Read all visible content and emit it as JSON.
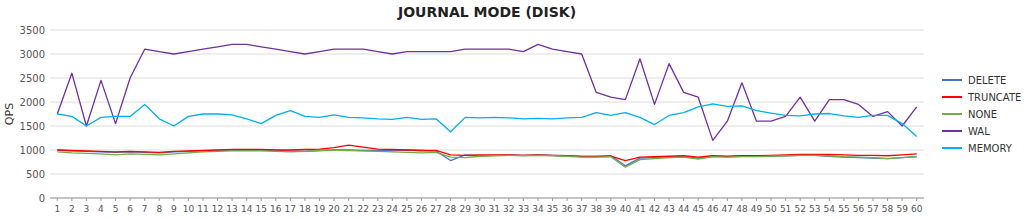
{
  "chart_data": {
    "type": "line",
    "title": "JOURNAL MODE (DISK)",
    "y_label": "QPS",
    "x": [
      1,
      2,
      3,
      4,
      5,
      6,
      7,
      8,
      9,
      10,
      11,
      12,
      13,
      14,
      15,
      16,
      17,
      18,
      19,
      20,
      21,
      22,
      23,
      24,
      25,
      26,
      27,
      28,
      29,
      30,
      31,
      32,
      33,
      34,
      35,
      36,
      37,
      38,
      39,
      40,
      41,
      42,
      43,
      44,
      45,
      46,
      47,
      48,
      49,
      50,
      51,
      52,
      53,
      54,
      55,
      56,
      57,
      58,
      59,
      60
    ],
    "xlim": [
      0.5,
      60.5
    ],
    "xticks": [
      1,
      2,
      3,
      4,
      5,
      6,
      7,
      8,
      9,
      10,
      11,
      12,
      13,
      14,
      15,
      16,
      17,
      18,
      19,
      20,
      21,
      22,
      23,
      24,
      25,
      26,
      27,
      28,
      29,
      30,
      31,
      32,
      33,
      34,
      35,
      36,
      37,
      38,
      39,
      40,
      41,
      42,
      43,
      44,
      45,
      46,
      47,
      48,
      49,
      50,
      51,
      52,
      53,
      54,
      55,
      56,
      57,
      58,
      59,
      60
    ],
    "ylim": [
      0,
      3500
    ],
    "yticks": [
      0,
      500,
      1000,
      1500,
      2000,
      2500,
      3000,
      3500
    ],
    "grid": true,
    "legend": "right",
    "series": [
      {
        "name": "DELETE",
        "color": "#4472C4",
        "values": [
          1000,
          980,
          970,
          960,
          950,
          960,
          950,
          940,
          960,
          970,
          980,
          990,
          1000,
          1000,
          1000,
          990,
          980,
          970,
          990,
          1000,
          1000,
          990,
          990,
          990,
          1000,
          990,
          980,
          780,
          900,
          880,
          890,
          900,
          890,
          900,
          890,
          880,
          870,
          870,
          880,
          670,
          830,
          840,
          850,
          860,
          830,
          870,
          860,
          870,
          870,
          880,
          880,
          890,
          890,
          870,
          850,
          840,
          830,
          820,
          840,
          860
        ]
      },
      {
        "name": "TRUNCATE",
        "color": "#FF0000",
        "values": [
          1000,
          990,
          980,
          970,
          960,
          970,
          960,
          950,
          970,
          980,
          990,
          1000,
          1010,
          1010,
          1010,
          1000,
          1000,
          1010,
          1020,
          1050,
          1100,
          1060,
          1020,
          1010,
          1000,
          990,
          990,
          900,
          890,
          900,
          900,
          900,
          890,
          900,
          890,
          880,
          860,
          860,
          870,
          780,
          850,
          860,
          870,
          880,
          850,
          880,
          870,
          880,
          880,
          890,
          900,
          910,
          910,
          910,
          900,
          890,
          890,
          880,
          900,
          920
        ]
      },
      {
        "name": "NONE",
        "color": "#70AD47",
        "values": [
          960,
          940,
          930,
          920,
          900,
          920,
          910,
          900,
          920,
          940,
          960,
          970,
          980,
          980,
          980,
          970,
          960,
          970,
          990,
          1000,
          990,
          980,
          970,
          960,
          950,
          940,
          950,
          850,
          840,
          870,
          880,
          890,
          880,
          890,
          880,
          870,
          850,
          850,
          860,
          640,
          800,
          820,
          840,
          850,
          810,
          860,
          850,
          860,
          860,
          870,
          880,
          890,
          890,
          880,
          860,
          850,
          840,
          820,
          840,
          860
        ]
      },
      {
        "name": "WAL",
        "color": "#7030A0",
        "values": [
          1750,
          2600,
          1500,
          2450,
          1550,
          2500,
          3100,
          3050,
          3000,
          3050,
          3100,
          3150,
          3200,
          3200,
          3150,
          3100,
          3050,
          3000,
          3050,
          3100,
          3100,
          3100,
          3050,
          3000,
          3050,
          3050,
          3050,
          3050,
          3100,
          3100,
          3100,
          3100,
          3050,
          3200,
          3100,
          3050,
          3000,
          2200,
          2100,
          2050,
          2900,
          1950,
          2800,
          2200,
          2100,
          1200,
          1600,
          2400,
          1600,
          1600,
          1700,
          2100,
          1600,
          2050,
          2050,
          1950,
          1700,
          1800,
          1500,
          1900
        ]
      },
      {
        "name": "MEMORY",
        "color": "#00B0F0",
        "values": [
          1750,
          1700,
          1500,
          1680,
          1700,
          1700,
          1950,
          1650,
          1500,
          1700,
          1750,
          1750,
          1730,
          1650,
          1550,
          1720,
          1820,
          1700,
          1680,
          1730,
          1680,
          1670,
          1650,
          1640,
          1680,
          1640,
          1650,
          1380,
          1680,
          1670,
          1680,
          1670,
          1650,
          1660,
          1650,
          1670,
          1680,
          1780,
          1720,
          1780,
          1680,
          1530,
          1720,
          1780,
          1900,
          1960,
          1910,
          1920,
          1820,
          1770,
          1720,
          1710,
          1750,
          1760,
          1710,
          1680,
          1720,
          1720,
          1550,
          1280
        ]
      }
    ]
  }
}
